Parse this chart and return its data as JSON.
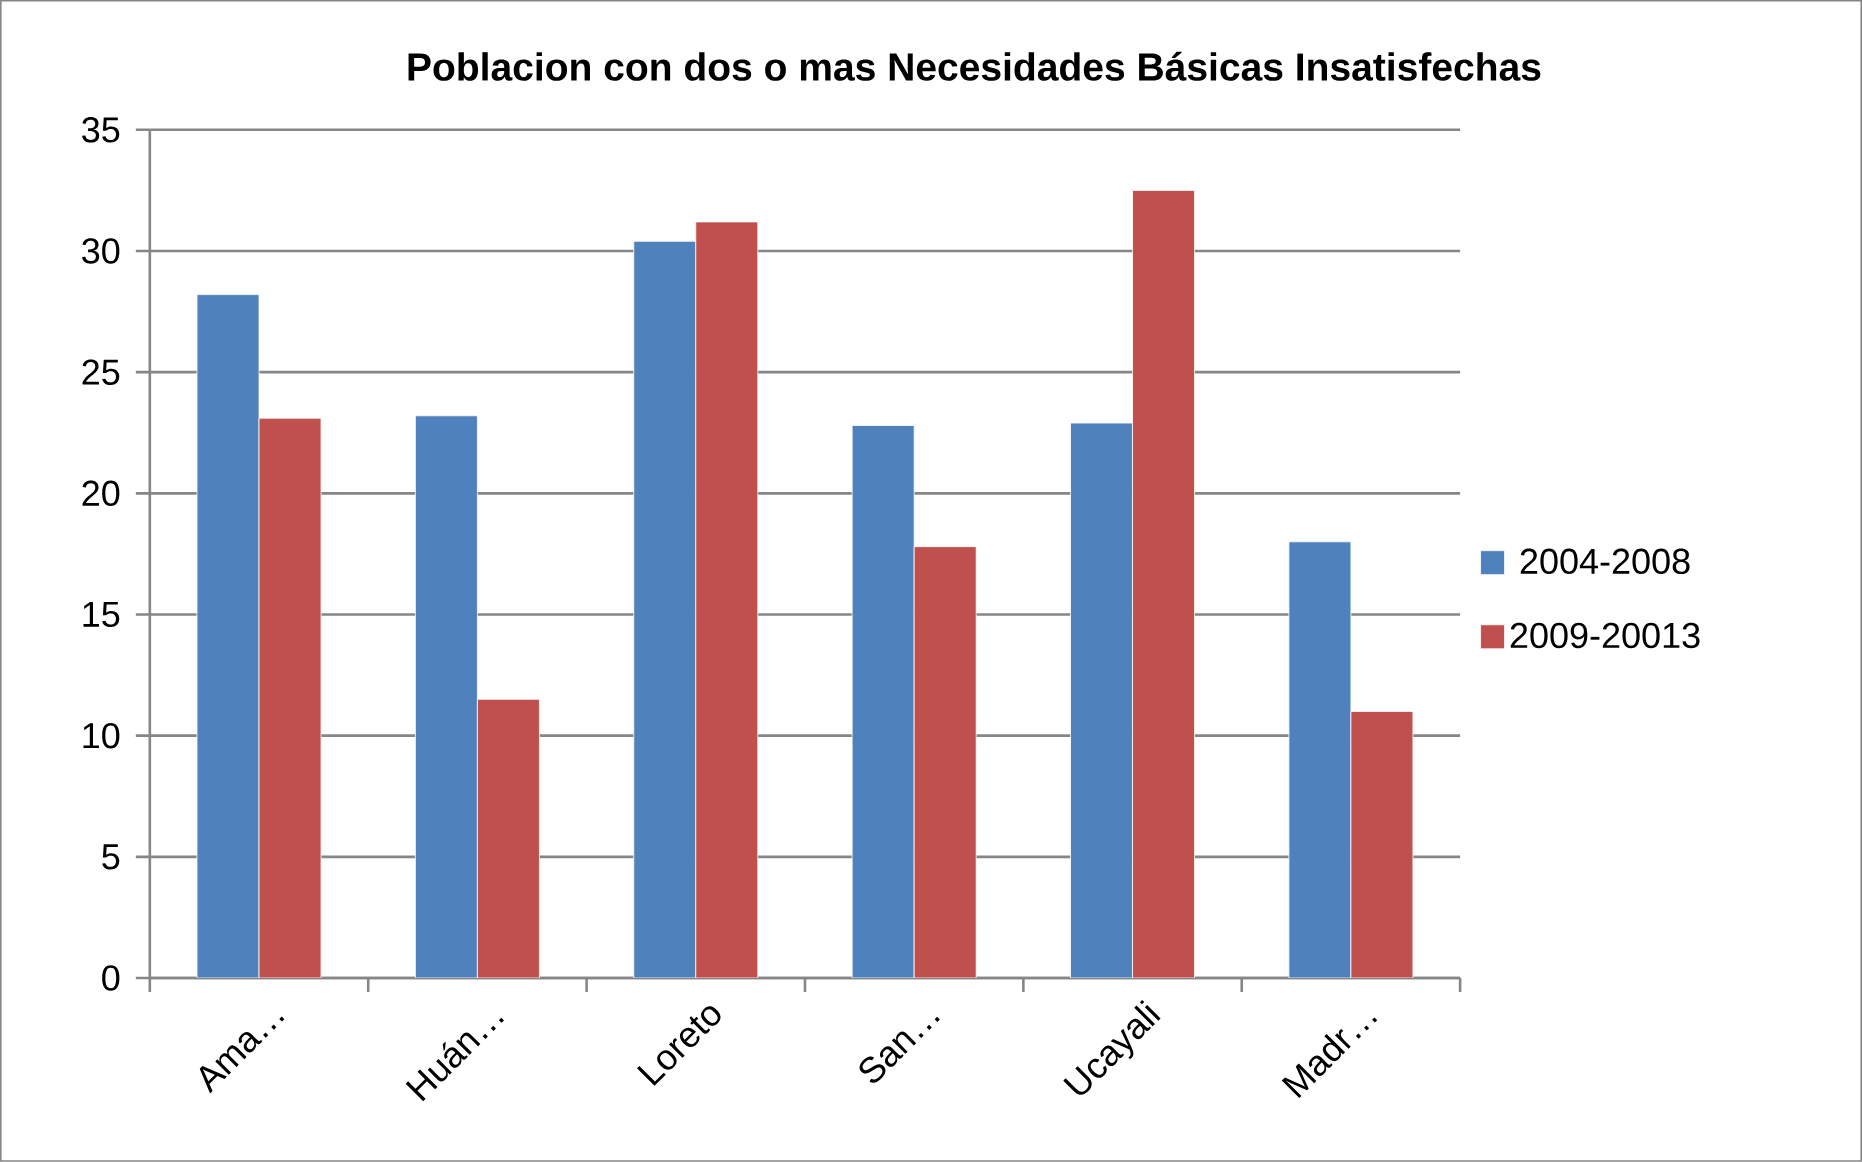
{
  "chart_data": {
    "type": "bar",
    "title": "Poblacion con dos o mas Necesidades Básicas Insatisfechas",
    "categories": [
      "Ama…",
      "Huán…",
      "Loreto",
      "San…",
      "Ucayali",
      "Madr…"
    ],
    "series": [
      {
        "name": "2004-2008",
        "color": "#4f81bd",
        "values": [
          28.2,
          23.2,
          30.4,
          22.8,
          22.9,
          18.0
        ]
      },
      {
        "name": "2009-20013",
        "color": "#c0504d",
        "values": [
          23.1,
          11.5,
          31.2,
          17.8,
          32.5,
          11.0
        ]
      }
    ],
    "ylim": [
      0,
      35
    ],
    "yticks": [
      0,
      5,
      10,
      15,
      20,
      25,
      30,
      35
    ],
    "grid": "y",
    "legend": "right"
  }
}
